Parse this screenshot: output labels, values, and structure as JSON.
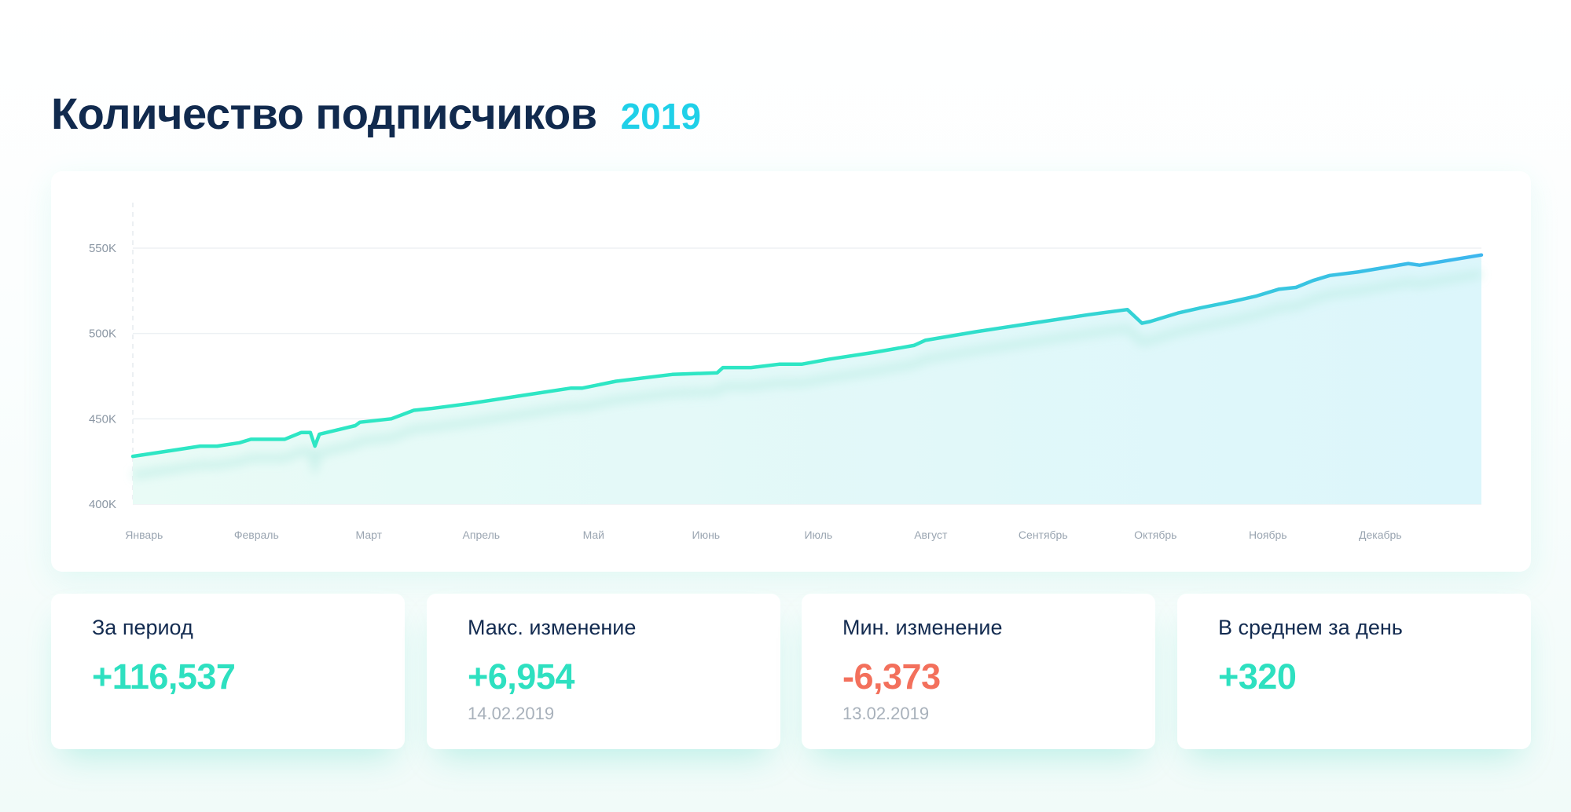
{
  "header": {
    "title": "Количество подписчиков",
    "year": "2019"
  },
  "colors": {
    "accent_start": "#2ee6c4",
    "accent_end": "#3db6ee",
    "positive": "#2ee0c0",
    "negative": "#f3705c",
    "title": "#112a4e"
  },
  "chart_data": {
    "type": "area",
    "title": "Количество подписчиков",
    "xlabel": "",
    "ylabel": "",
    "ylim": [
      400000,
      550000
    ],
    "y_ticks": [
      {
        "value": 400000,
        "label": "400K"
      },
      {
        "value": 450000,
        "label": "450K"
      },
      {
        "value": 500000,
        "label": "500K"
      },
      {
        "value": 550000,
        "label": "550K"
      }
    ],
    "x_range": [
      0,
      12
    ],
    "months": [
      "Январь",
      "Февраль",
      "Март",
      "Апрель",
      "Май",
      "Июнь",
      "Июль",
      "Август",
      "Сентябрь",
      "Октябрь",
      "Ноябрь",
      "Декабрь"
    ],
    "grid": true,
    "series": [
      {
        "x": [
          0.0,
          0.4,
          0.6,
          0.75,
          0.95,
          1.05,
          1.25,
          1.35,
          1.5,
          1.58,
          1.62,
          1.66,
          1.85,
          1.98,
          2.02,
          2.3,
          2.5,
          2.65,
          3.0,
          3.5,
          3.9,
          4.0,
          4.3,
          4.8,
          5.2,
          5.25,
          5.5,
          5.75,
          5.95,
          6.2,
          6.6,
          6.95,
          7.05,
          7.5,
          8.0,
          8.5,
          8.85,
          8.98,
          9.05,
          9.15,
          9.3,
          9.5,
          9.8,
          10.0,
          10.2,
          10.35,
          10.5,
          10.65,
          10.9,
          11.35,
          11.45,
          12.0
        ],
        "y": [
          428000,
          432000,
          434000,
          434000,
          436000,
          438000,
          438000,
          438000,
          442000,
          442000,
          434000,
          441000,
          444000,
          446000,
          448000,
          450000,
          455000,
          456000,
          459000,
          464000,
          468000,
          468000,
          472000,
          476000,
          477000,
          480000,
          480000,
          482000,
          482000,
          485000,
          489000,
          493000,
          496000,
          501000,
          506000,
          511000,
          514000,
          506000,
          507000,
          509000,
          512000,
          515000,
          519000,
          522000,
          526000,
          527000,
          531000,
          534000,
          536000,
          541000,
          540000,
          546000
        ]
      }
    ]
  },
  "stats": [
    {
      "label": "За период",
      "value": "+116,537",
      "date": ""
    },
    {
      "label": "Макс. изменение",
      "value": "+6,954",
      "date": "14.02.2019"
    },
    {
      "label": "Мин. изменение",
      "value": "-6,373",
      "date": "13.02.2019"
    },
    {
      "label": "В среднем за день",
      "value": "+320",
      "date": ""
    }
  ]
}
